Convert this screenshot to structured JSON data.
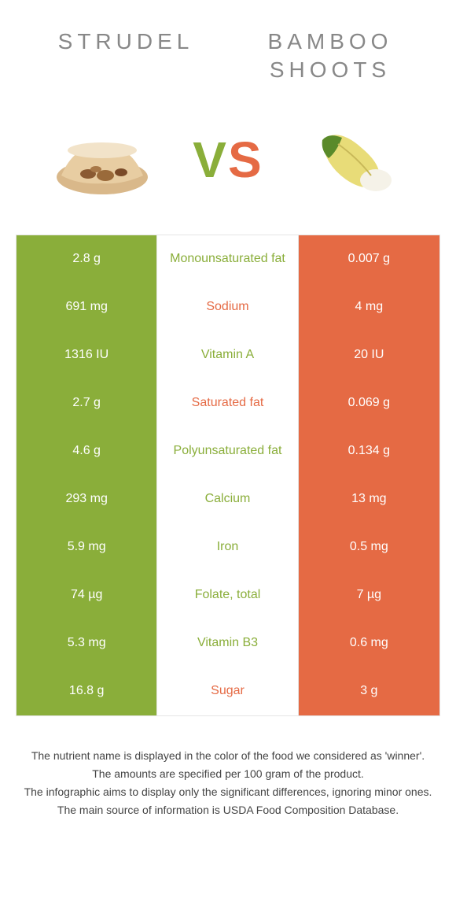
{
  "header": {
    "left_title": "Strudel",
    "right_title": "Bamboo Shoots",
    "vs_v": "V",
    "vs_s": "S"
  },
  "colors": {
    "green": "#8aae3a",
    "orange": "#e56a44",
    "grey_text": "#888888",
    "border": "#e5e5e5",
    "white": "#ffffff"
  },
  "rows": [
    {
      "left": "2.8 g",
      "name": "Monounsaturated fat",
      "right": "0.007 g",
      "winner": "green"
    },
    {
      "left": "691 mg",
      "name": "Sodium",
      "right": "4 mg",
      "winner": "orange"
    },
    {
      "left": "1316 IU",
      "name": "Vitamin A",
      "right": "20 IU",
      "winner": "green"
    },
    {
      "left": "2.7 g",
      "name": "Saturated fat",
      "right": "0.069 g",
      "winner": "orange"
    },
    {
      "left": "4.6 g",
      "name": "Polyunsaturated fat",
      "right": "0.134 g",
      "winner": "green"
    },
    {
      "left": "293 mg",
      "name": "Calcium",
      "right": "13 mg",
      "winner": "green"
    },
    {
      "left": "5.9 mg",
      "name": "Iron",
      "right": "0.5 mg",
      "winner": "green"
    },
    {
      "left": "74 µg",
      "name": "Folate, total",
      "right": "7 µg",
      "winner": "green"
    },
    {
      "left": "5.3 mg",
      "name": "Vitamin B3",
      "right": "0.6 mg",
      "winner": "green"
    },
    {
      "left": "16.8 g",
      "name": "Sugar",
      "right": "3 g",
      "winner": "orange"
    }
  ],
  "footer": {
    "line1": "The nutrient name is displayed in the color of the food we considered as 'winner'.",
    "line2": "The amounts are specified per 100 gram of the product.",
    "line3": "The infographic aims to display only the significant differences, ignoring minor ones.",
    "line4": "The main source of information is USDA Food Composition Database."
  }
}
